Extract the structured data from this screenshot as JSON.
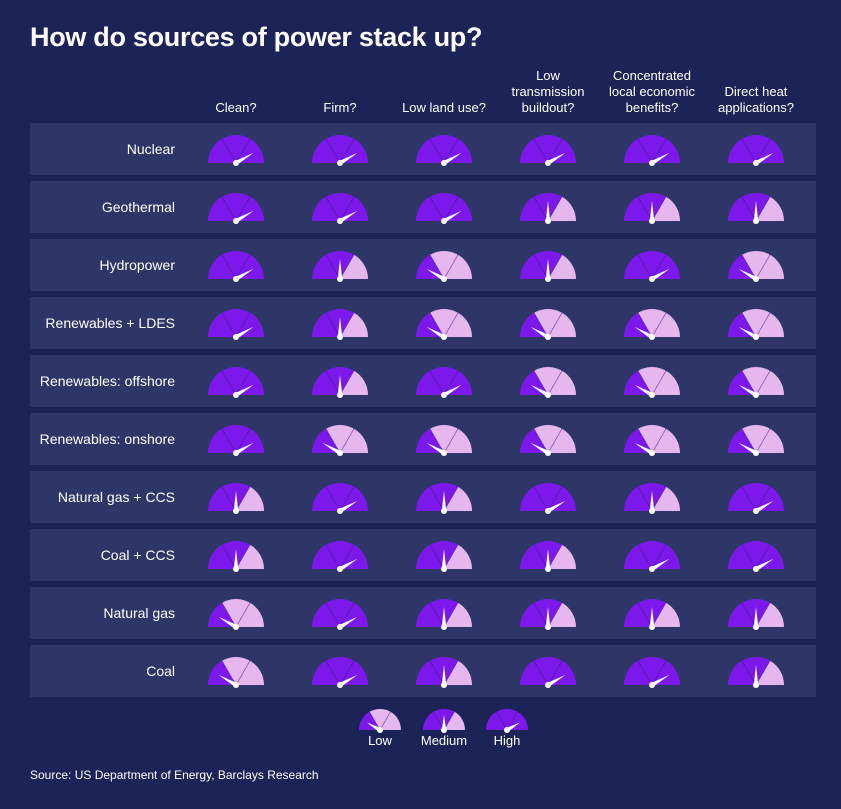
{
  "chart_data": {
    "type": "table",
    "title": "How do sources of power stack up?",
    "columns": [
      "Clean?",
      "Firm?",
      "Low land use?",
      "Low\ntransmission\nbuildout?",
      "Concentrated\nlocal economic\nbenefits?",
      "Direct heat\napplications?"
    ],
    "rows": [
      {
        "label": "Nuclear",
        "ratings": [
          "High",
          "High",
          "High",
          "High",
          "High",
          "High"
        ]
      },
      {
        "label": "Geothermal",
        "ratings": [
          "High",
          "High",
          "High",
          "Medium",
          "Medium",
          "Medium"
        ]
      },
      {
        "label": "Hydropower",
        "ratings": [
          "High",
          "Medium",
          "Low",
          "Medium",
          "High",
          "Low"
        ]
      },
      {
        "label": "Renewables + LDES",
        "ratings": [
          "High",
          "Medium",
          "Low",
          "Low",
          "Low",
          "Low"
        ]
      },
      {
        "label": "Renewables: offshore",
        "ratings": [
          "High",
          "Medium",
          "High",
          "Low",
          "Low",
          "Low"
        ]
      },
      {
        "label": "Renewables: onshore",
        "ratings": [
          "High",
          "Low",
          "Low",
          "Low",
          "Low",
          "Low"
        ]
      },
      {
        "label": "Natural gas + CCS",
        "ratings": [
          "Medium",
          "High",
          "Medium",
          "High",
          "Medium",
          "High"
        ]
      },
      {
        "label": "Coal + CCS",
        "ratings": [
          "Medium",
          "High",
          "Medium",
          "Medium",
          "High",
          "High"
        ]
      },
      {
        "label": "Natural gas",
        "ratings": [
          "Low",
          "High",
          "Medium",
          "Medium",
          "Medium",
          "Medium"
        ]
      },
      {
        "label": "Coal",
        "ratings": [
          "Low",
          "High",
          "Medium",
          "High",
          "High",
          "Medium"
        ]
      }
    ],
    "scale": [
      "Low",
      "Medium",
      "High"
    ],
    "legend": {
      "labels": [
        "Low",
        "Medium",
        "High"
      ],
      "placement": "bottom-center"
    },
    "colors": {
      "fill": "#7d18ec",
      "light": "#e6b7ee",
      "needle": "#ffffff",
      "row_bg": "#2e3668",
      "background": "#1c2457"
    }
  },
  "source": "Source: US Department of Energy, Barclays Research"
}
